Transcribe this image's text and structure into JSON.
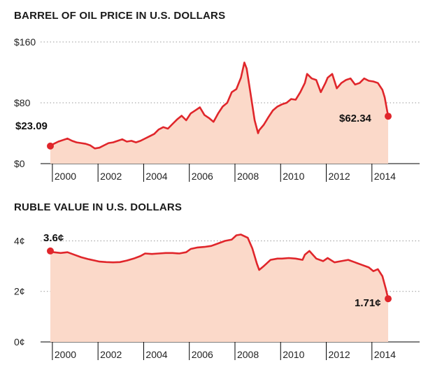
{
  "chart_data": [
    {
      "type": "area",
      "title": "BARREL OF OIL PRICE IN U.S. DOLLARS",
      "xlabel": "",
      "ylabel": "",
      "xlim": [
        1999.85,
        2014.65
      ],
      "ylim": [
        0,
        160
      ],
      "yticks": [
        {
          "value": 0,
          "label": "$0"
        },
        {
          "value": 80,
          "label": "$80"
        },
        {
          "value": 160,
          "label": "$160"
        }
      ],
      "xticks": [
        2000,
        2002,
        2004,
        2006,
        2008,
        2010,
        2012,
        2014
      ],
      "grid": true,
      "line_color": "#e0262b",
      "fill_color": "#fbd9c9",
      "annotations": [
        {
          "x": 1999.85,
          "y": 23.09,
          "label": "$23.09"
        },
        {
          "x": 2014.65,
          "y": 62.34,
          "label": "$62.34"
        }
      ],
      "series": [
        {
          "x": [
            1999.85,
            2000.0,
            2000.2,
            2000.4,
            2000.6,
            2000.8,
            2001.0,
            2001.2,
            2001.4,
            2001.6,
            2001.8,
            2002.0,
            2002.2,
            2002.4,
            2002.6,
            2002.8,
            2003.0,
            2003.2,
            2003.4,
            2003.6,
            2003.8,
            2004.0,
            2004.2,
            2004.4,
            2004.6,
            2004.8,
            2005.0,
            2005.2,
            2005.4,
            2005.6,
            2005.8,
            2006.0,
            2006.2,
            2006.4,
            2006.6,
            2006.8,
            2007.0,
            2007.2,
            2007.4,
            2007.6,
            2007.8,
            2008.0,
            2008.2,
            2008.35,
            2008.45,
            2008.6,
            2008.8,
            2008.95,
            2009.0,
            2009.2,
            2009.4,
            2009.6,
            2009.8,
            2010.0,
            2010.2,
            2010.4,
            2010.6,
            2010.8,
            2011.0,
            2011.1,
            2011.3,
            2011.5,
            2011.7,
            2011.9,
            2012.0,
            2012.2,
            2012.4,
            2012.6,
            2012.8,
            2013.0,
            2013.2,
            2013.4,
            2013.6,
            2013.8,
            2014.0,
            2014.2,
            2014.4,
            2014.5,
            2014.65
          ],
          "values": [
            23.09,
            26,
            29,
            31,
            33,
            30,
            28,
            27,
            26,
            24,
            20,
            21,
            24,
            27,
            28,
            30,
            32,
            29,
            30,
            28,
            30,
            33,
            36,
            39,
            45,
            48,
            46,
            52,
            58,
            63,
            57,
            66,
            70,
            74,
            64,
            60,
            55,
            66,
            75,
            80,
            94,
            98,
            113,
            133,
            125,
            96,
            57,
            40,
            44,
            51,
            61,
            70,
            75,
            78,
            80,
            85,
            84,
            94,
            106,
            118,
            112,
            110,
            94,
            106,
            113,
            118,
            99,
            106,
            110,
            112,
            104,
            106,
            112,
            109,
            108,
            106,
            97,
            87,
            62.34
          ]
        }
      ]
    },
    {
      "type": "area",
      "title": "RUBLE VALUE IN U.S. DOLLARS",
      "xlabel": "",
      "ylabel": "",
      "xlim": [
        1999.85,
        2014.65
      ],
      "ylim": [
        0,
        4.4
      ],
      "yticks": [
        {
          "value": 0,
          "label": "0¢"
        },
        {
          "value": 2,
          "label": "2¢"
        },
        {
          "value": 4,
          "label": "4¢"
        }
      ],
      "xticks": [
        2000,
        2002,
        2004,
        2006,
        2008,
        2010,
        2012,
        2014
      ],
      "grid": true,
      "line_color": "#e0262b",
      "fill_color": "#fbd9c9",
      "annotations": [
        {
          "x": 1999.85,
          "y": 3.6,
          "label": "3.6¢"
        },
        {
          "x": 2014.65,
          "y": 1.71,
          "label": "1.71¢"
        }
      ],
      "series": [
        {
          "x": [
            1999.85,
            2000.0,
            2000.3,
            2000.6,
            2000.9,
            2001.2,
            2001.5,
            2001.8,
            2002.0,
            2002.3,
            2002.6,
            2002.9,
            2003.2,
            2003.5,
            2003.8,
            2004.0,
            2004.3,
            2004.6,
            2004.9,
            2005.2,
            2005.5,
            2005.8,
            2006.0,
            2006.3,
            2006.6,
            2006.9,
            2007.2,
            2007.5,
            2007.8,
            2008.0,
            2008.2,
            2008.5,
            2008.7,
            2008.9,
            2009.0,
            2009.2,
            2009.5,
            2009.8,
            2010.0,
            2010.3,
            2010.6,
            2010.9,
            2011.0,
            2011.2,
            2011.5,
            2011.8,
            2012.0,
            2012.3,
            2012.6,
            2012.9,
            2013.2,
            2013.5,
            2013.8,
            2014.0,
            2014.2,
            2014.4,
            2014.55,
            2014.65
          ],
          "values": [
            3.6,
            3.55,
            3.52,
            3.55,
            3.45,
            3.35,
            3.28,
            3.22,
            3.18,
            3.16,
            3.15,
            3.16,
            3.22,
            3.3,
            3.4,
            3.5,
            3.48,
            3.5,
            3.52,
            3.52,
            3.5,
            3.55,
            3.68,
            3.74,
            3.76,
            3.8,
            3.9,
            4.0,
            4.05,
            4.22,
            4.25,
            4.12,
            3.7,
            3.1,
            2.85,
            3.0,
            3.25,
            3.3,
            3.3,
            3.32,
            3.3,
            3.25,
            3.45,
            3.6,
            3.3,
            3.2,
            3.32,
            3.15,
            3.2,
            3.25,
            3.15,
            3.05,
            2.95,
            2.8,
            2.88,
            2.6,
            2.1,
            1.71
          ]
        }
      ]
    }
  ]
}
